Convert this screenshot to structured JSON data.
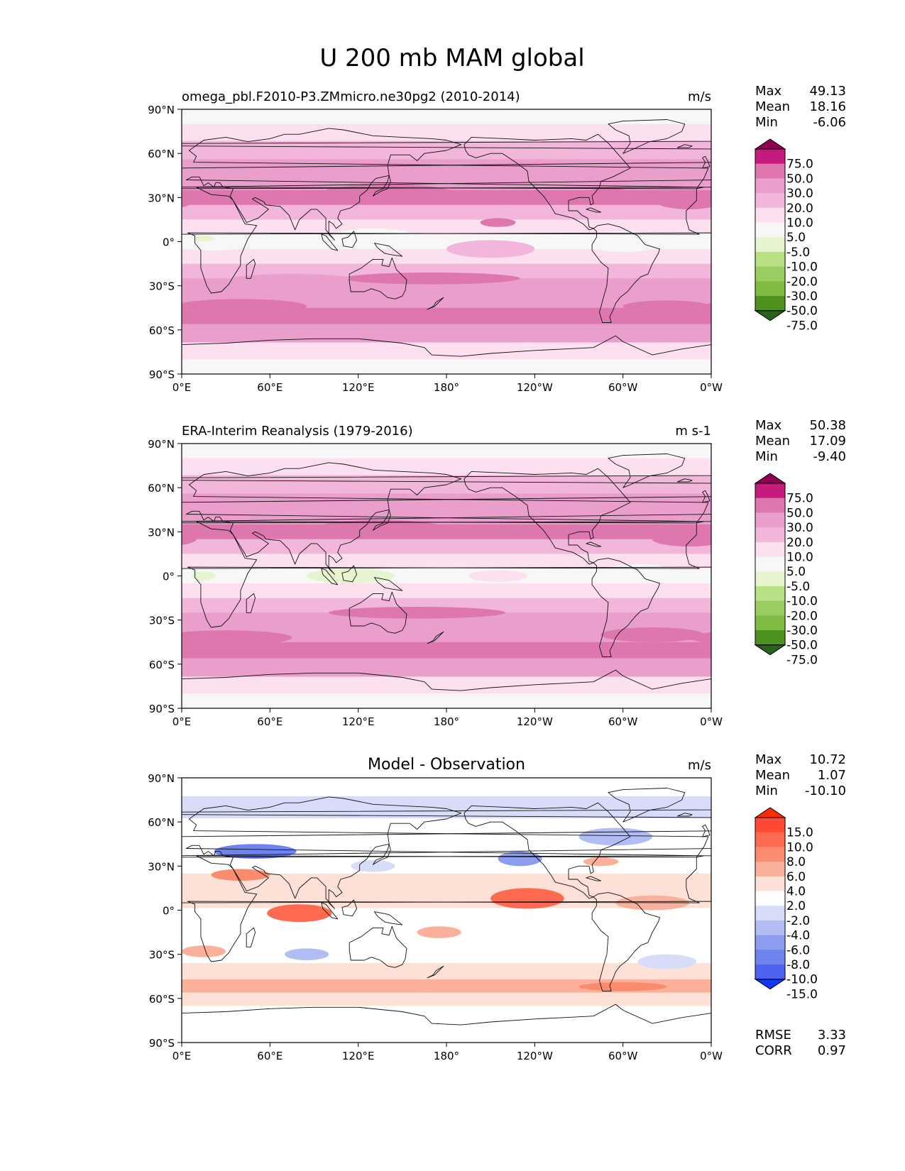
{
  "figure_title": "U 200 mb MAM global",
  "chart_data": [
    {
      "type": "contour-map",
      "title": "omega_pbl.F2010-P3.ZMmicro.ne30pg2 (2010-2014)",
      "units": "m/s",
      "lat_ticks": [
        "90°N",
        "60°N",
        "30°N",
        "0°",
        "30°S",
        "60°S",
        "90°S"
      ],
      "lon_ticks": [
        "0°E",
        "60°E",
        "120°E",
        "180°",
        "120°W",
        "60°W",
        "0°W"
      ],
      "stats": [
        {
          "label": "Max",
          "value": "49.13"
        },
        {
          "label": "Mean",
          "value": "18.16"
        },
        {
          "label": "Min",
          "value": "-6.06"
        }
      ],
      "colorbar": {
        "levels": [
          "75.0",
          "50.0",
          "30.0",
          "20.0",
          "10.0",
          "5.0",
          "-5.0",
          "-10.0",
          "-20.0",
          "-30.0",
          "-50.0",
          "-75.0"
        ],
        "colors": [
          "#8e0152",
          "#c51b7d",
          "#de77ae",
          "#ea9ecb",
          "#f1b6da",
          "#fde0ef",
          "#f7f7f7",
          "#e6f5d0",
          "#b8e186",
          "#9acd61",
          "#7fbc41",
          "#4d9221",
          "#276419"
        ]
      },
      "bands": [
        {
          "lat": 85,
          "value": 1
        },
        {
          "lat": 75,
          "value": 8
        },
        {
          "lat": 62,
          "value": 15
        },
        {
          "lat": 50,
          "value": 24
        },
        {
          "lat": 40,
          "value": 28
        },
        {
          "lat": 30,
          "value": 34
        },
        {
          "lat": 20,
          "value": 18
        },
        {
          "lat": 10,
          "value": 6
        },
        {
          "lat": 0,
          "value": 0
        },
        {
          "lat": -10,
          "value": 7
        },
        {
          "lat": -20,
          "value": 15
        },
        {
          "lat": -30,
          "value": 24
        },
        {
          "lat": -40,
          "value": 27
        },
        {
          "lat": -50,
          "value": 32
        },
        {
          "lat": -62,
          "value": 22
        },
        {
          "lat": -75,
          "value": 9
        },
        {
          "lat": -85,
          "value": 3
        }
      ],
      "blobs": [
        {
          "lon": 140,
          "lat": 33,
          "dlon": 45,
          "dlat": 6,
          "value": 38
        },
        {
          "lon": 290,
          "lat": 32,
          "dlon": 15,
          "dlat": 5,
          "value": 36
        },
        {
          "lon": 345,
          "lat": 27,
          "dlon": 22,
          "dlat": 5,
          "value": 34
        },
        {
          "lon": 215,
          "lat": 13,
          "dlon": 12,
          "dlat": 3,
          "value": 31
        },
        {
          "lon": 170,
          "lat": -25,
          "dlon": 60,
          "dlat": 4,
          "value": 31
        },
        {
          "lon": 40,
          "lat": -44,
          "dlon": 45,
          "dlat": 5,
          "value": 33
        },
        {
          "lon": 330,
          "lat": -44,
          "dlon": 30,
          "dlat": 4,
          "value": 34
        },
        {
          "lon": 75,
          "lat": -25,
          "dlon": 40,
          "dlat": 3,
          "value": 26
        },
        {
          "lon": 210,
          "lat": -5,
          "dlon": 30,
          "dlat": 6,
          "value": 12
        },
        {
          "lon": 300,
          "lat": 0,
          "dlon": 28,
          "dlat": 7,
          "value": 1
        },
        {
          "lon": 130,
          "lat": 3,
          "dlon": 30,
          "dlat": 6,
          "value": 2
        },
        {
          "lon": 20,
          "lat": 0,
          "dlon": 30,
          "dlat": 6,
          "value": 0
        },
        {
          "lon": 15,
          "lat": 2,
          "dlon": 7,
          "dlat": 2,
          "value": -6
        }
      ]
    },
    {
      "type": "contour-map",
      "title": "ERA-Interim Reanalysis (1979-2016)",
      "units": "m s-1",
      "lat_ticks": [
        "90°N",
        "60°N",
        "30°N",
        "0°",
        "30°S",
        "60°S",
        "90°S"
      ],
      "lon_ticks": [
        "0°E",
        "60°E",
        "120°E",
        "180°",
        "120°W",
        "60°W",
        "0°W"
      ],
      "stats": [
        {
          "label": "Max",
          "value": "50.38"
        },
        {
          "label": "Mean",
          "value": "17.09"
        },
        {
          "label": "Min",
          "value": "-9.40"
        }
      ],
      "colorbar": {
        "levels": [
          "75.0",
          "50.0",
          "30.0",
          "20.0",
          "10.0",
          "5.0",
          "-5.0",
          "-10.0",
          "-20.0",
          "-30.0",
          "-50.0",
          "-75.0"
        ],
        "colors": [
          "#8e0152",
          "#c51b7d",
          "#de77ae",
          "#ea9ecb",
          "#f1b6da",
          "#fde0ef",
          "#f7f7f7",
          "#e6f5d0",
          "#b8e186",
          "#9acd61",
          "#7fbc41",
          "#4d9221",
          "#276419"
        ]
      },
      "bands": [
        {
          "lat": 85,
          "value": 2
        },
        {
          "lat": 75,
          "value": 8
        },
        {
          "lat": 62,
          "value": 14
        },
        {
          "lat": 50,
          "value": 22
        },
        {
          "lat": 40,
          "value": 27
        },
        {
          "lat": 30,
          "value": 33
        },
        {
          "lat": 20,
          "value": 17
        },
        {
          "lat": 10,
          "value": 6
        },
        {
          "lat": 0,
          "value": 0
        },
        {
          "lat": -10,
          "value": 8
        },
        {
          "lat": -20,
          "value": 16
        },
        {
          "lat": -30,
          "value": 24
        },
        {
          "lat": -40,
          "value": 27
        },
        {
          "lat": -50,
          "value": 32
        },
        {
          "lat": -62,
          "value": 22
        },
        {
          "lat": -75,
          "value": 8
        },
        {
          "lat": -85,
          "value": 4
        }
      ],
      "blobs": [
        {
          "lon": 135,
          "lat": 32,
          "dlon": 45,
          "dlat": 6,
          "value": 38
        },
        {
          "lon": 290,
          "lat": 30,
          "dlon": 18,
          "dlat": 5,
          "value": 34
        },
        {
          "lon": 345,
          "lat": 25,
          "dlon": 25,
          "dlat": 5,
          "value": 33
        },
        {
          "lon": 160,
          "lat": -25,
          "dlon": 60,
          "dlat": 4,
          "value": 31
        },
        {
          "lon": 30,
          "lat": -42,
          "dlon": 45,
          "dlat": 5,
          "value": 33
        },
        {
          "lon": 320,
          "lat": -40,
          "dlon": 35,
          "dlat": 5,
          "value": 33
        },
        {
          "lon": 115,
          "lat": 0,
          "dlon": 30,
          "dlat": 5,
          "value": -8
        },
        {
          "lon": 15,
          "lat": 0,
          "dlon": 8,
          "dlat": 3,
          "value": -6
        },
        {
          "lon": 310,
          "lat": 2,
          "dlon": 25,
          "dlat": 6,
          "value": 2
        },
        {
          "lon": 215,
          "lat": 0,
          "dlon": 20,
          "dlat": 4,
          "value": 8
        }
      ]
    },
    {
      "type": "contour-map",
      "title": "Model - Observation",
      "units": "m/s",
      "lat_ticks": [
        "90°N",
        "60°N",
        "30°N",
        "0°",
        "30°S",
        "60°S",
        "90°S"
      ],
      "lon_ticks": [
        "0°E",
        "60°E",
        "120°E",
        "180°",
        "120°W",
        "60°W",
        "0°W"
      ],
      "stats": [
        {
          "label": "Max",
          "value": "10.72"
        },
        {
          "label": "Mean",
          "value": "1.07"
        },
        {
          "label": "Min",
          "value": "-10.10"
        }
      ],
      "extra_stats": [
        {
          "label": "RMSE",
          "value": "3.33"
        },
        {
          "label": "CORR",
          "value": "0.97"
        }
      ],
      "colorbar": {
        "levels": [
          "15.0",
          "10.0",
          "8.0",
          "6.0",
          "4.0",
          "2.0",
          "-2.0",
          "-4.0",
          "-6.0",
          "-8.0",
          "-10.0",
          "-15.0"
        ],
        "colors": [
          "#ff2e00",
          "#fe4a34",
          "#fd6a50",
          "#fb8b6e",
          "#fbb09c",
          "#fde0d6",
          "#ffffff",
          "#d7ddf9",
          "#b2bdf4",
          "#8c9def",
          "#6e83ef",
          "#4d63f2",
          "#0f37ff"
        ]
      },
      "bands": [
        {
          "lat": 85,
          "value": 0
        },
        {
          "lat": 70,
          "value": -2.5
        },
        {
          "lat": 55,
          "value": -0.5
        },
        {
          "lat": 42,
          "value": 0
        },
        {
          "lat": 30,
          "value": 0
        },
        {
          "lat": 20,
          "value": 2.5
        },
        {
          "lat": 8,
          "value": 2.5
        },
        {
          "lat": -5,
          "value": 0
        },
        {
          "lat": -20,
          "value": 0
        },
        {
          "lat": -30,
          "value": 0
        },
        {
          "lat": -42,
          "value": 2.5
        },
        {
          "lat": -52,
          "value": 4.5
        },
        {
          "lat": -60,
          "value": 2.5
        },
        {
          "lat": -70,
          "value": 0
        },
        {
          "lat": -85,
          "value": 1
        }
      ],
      "blobs": [
        {
          "lon": 50,
          "lat": 40,
          "dlon": 28,
          "dlat": 5,
          "value": -9
        },
        {
          "lon": 40,
          "lat": 24,
          "dlon": 20,
          "dlat": 4,
          "value": 7
        },
        {
          "lon": 80,
          "lat": -2,
          "dlon": 22,
          "dlat": 6,
          "value": 8
        },
        {
          "lon": 235,
          "lat": 8,
          "dlon": 25,
          "dlat": 7,
          "value": 9
        },
        {
          "lon": 230,
          "lat": 35,
          "dlon": 15,
          "dlat": 5,
          "value": -7
        },
        {
          "lon": 295,
          "lat": 50,
          "dlon": 25,
          "dlat": 6,
          "value": -5
        },
        {
          "lon": 285,
          "lat": 33,
          "dlon": 12,
          "dlat": 3,
          "value": 5
        },
        {
          "lon": 85,
          "lat": -30,
          "dlon": 15,
          "dlat": 4,
          "value": -5
        },
        {
          "lon": 130,
          "lat": 30,
          "dlon": 15,
          "dlat": 4,
          "value": -4
        },
        {
          "lon": 320,
          "lat": 5,
          "dlon": 25,
          "dlat": 5,
          "value": 5
        },
        {
          "lon": 175,
          "lat": -15,
          "dlon": 15,
          "dlat": 4,
          "value": 5
        },
        {
          "lon": 15,
          "lat": -28,
          "dlon": 15,
          "dlat": 4,
          "value": 5
        },
        {
          "lon": 300,
          "lat": -52,
          "dlon": 30,
          "dlat": 3,
          "value": 6
        },
        {
          "lon": 330,
          "lat": -35,
          "dlon": 20,
          "dlat": 5,
          "value": -4
        }
      ]
    }
  ]
}
